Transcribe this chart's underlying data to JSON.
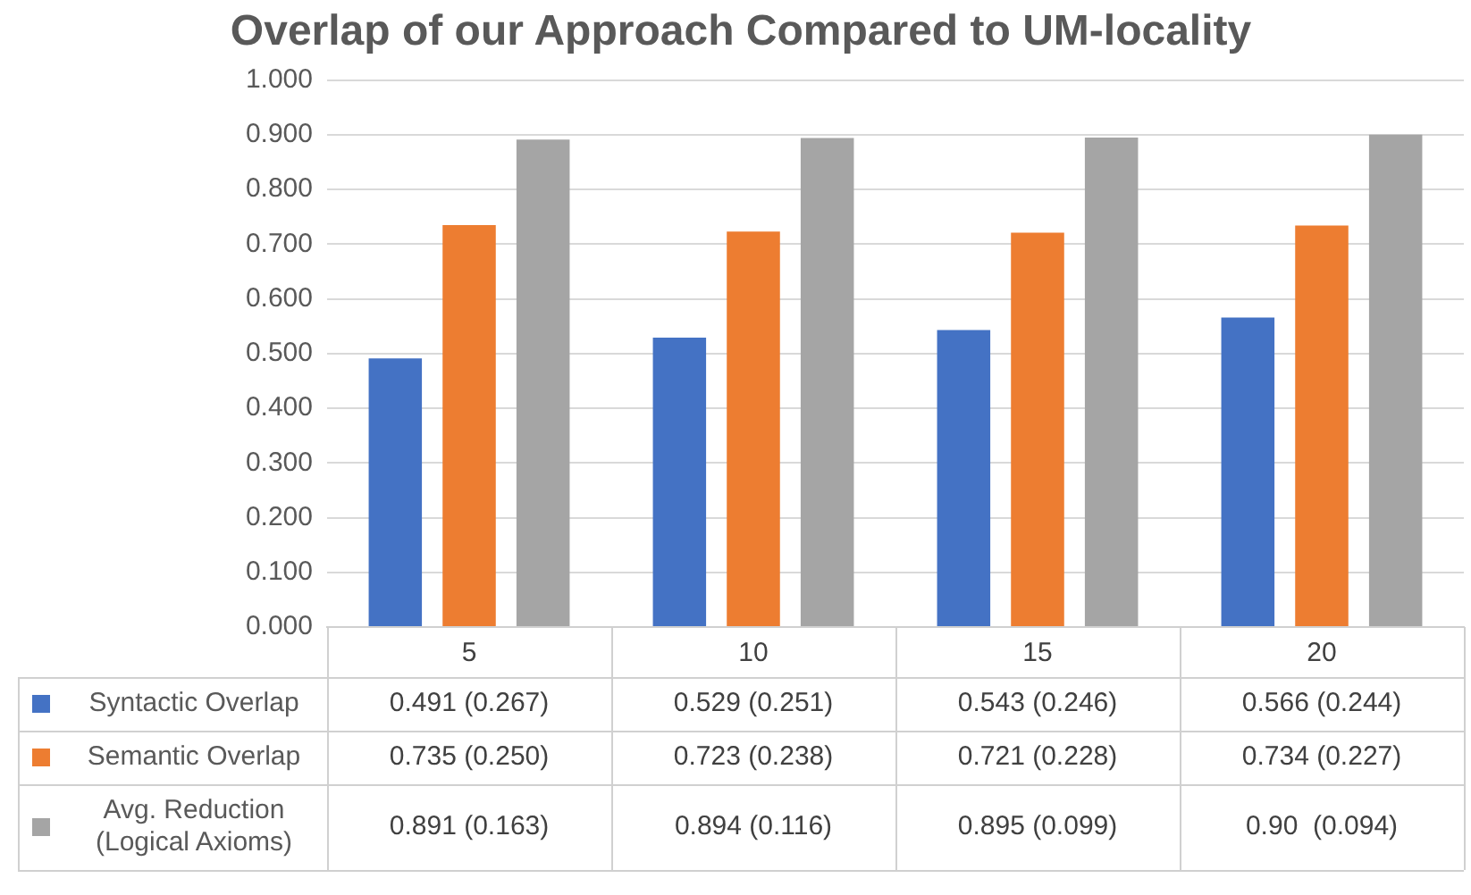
{
  "chart_data": {
    "type": "bar",
    "title": "Overlap of our Approach Compared to UM-locality",
    "categories": [
      "5",
      "10",
      "15",
      "20"
    ],
    "series": [
      {
        "name": "Syntactic Overlap",
        "color": "#4472c4",
        "values": [
          0.491,
          0.529,
          0.543,
          0.566
        ],
        "value_labels": [
          "0.491 (0.267)",
          "0.529 (0.251)",
          "0.543 (0.246)",
          "0.566 (0.244)"
        ]
      },
      {
        "name": "Semantic Overlap",
        "color": "#ed7d31",
        "values": [
          0.735,
          0.723,
          0.721,
          0.734
        ],
        "value_labels": [
          "0.735 (0.250)",
          "0.723 (0.238)",
          "0.721 (0.228)",
          "0.734 (0.227)"
        ]
      },
      {
        "name": "Avg. Reduction (Logical Axioms)",
        "color": "#a5a5a5",
        "values": [
          0.891,
          0.894,
          0.895,
          0.9
        ],
        "value_labels": [
          "0.891 (0.163)",
          "0.894 (0.116)",
          "0.895 (0.099)",
          "0.90  (0.094)"
        ]
      }
    ],
    "ylim": [
      0,
      1
    ],
    "yticks": [
      {
        "value": 0,
        "label": "0.000"
      },
      {
        "value": 0.1,
        "label": "0.100"
      },
      {
        "value": 0.2,
        "label": "0.200"
      },
      {
        "value": 0.3,
        "label": "0.300"
      },
      {
        "value": 0.4,
        "label": "0.400"
      },
      {
        "value": 0.5,
        "label": "0.500"
      },
      {
        "value": 0.6,
        "label": "0.600"
      },
      {
        "value": 0.7,
        "label": "0.700"
      },
      {
        "value": 0.8,
        "label": "0.800"
      },
      {
        "value": 0.9,
        "label": "0.900"
      },
      {
        "value": 1,
        "label": "1.000"
      }
    ],
    "grid": "y",
    "legend": "bottom"
  }
}
